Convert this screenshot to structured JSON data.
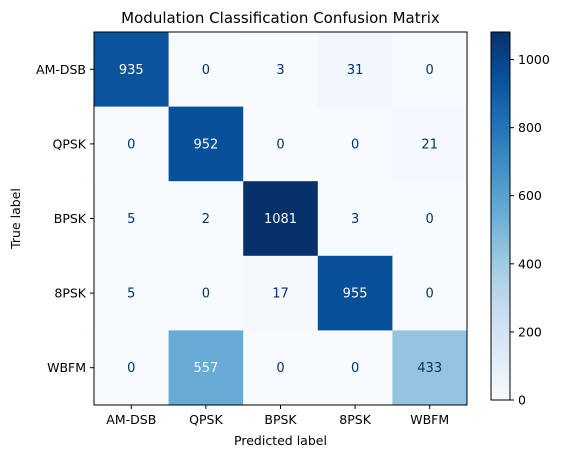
{
  "chart_data": {
    "type": "heatmap",
    "title": "Modulation Classification Confusion Matrix",
    "xlabel": "Predicted label",
    "ylabel": "True label",
    "x_categories": [
      "AM-DSB",
      "QPSK",
      "BPSK",
      "8PSK",
      "WBFM"
    ],
    "y_categories": [
      "AM-DSB",
      "QPSK",
      "BPSK",
      "8PSK",
      "WBFM"
    ],
    "values": [
      [
        935,
        0,
        3,
        31,
        0
      ],
      [
        0,
        952,
        0,
        0,
        21
      ],
      [
        5,
        2,
        1081,
        3,
        0
      ],
      [
        5,
        0,
        17,
        955,
        0
      ],
      [
        0,
        557,
        0,
        0,
        433
      ]
    ],
    "colormap": "Blues",
    "colorbar": {
      "range": [
        0,
        1081
      ],
      "ticks": [
        0,
        200,
        400,
        600,
        800,
        1000
      ]
    },
    "colors": {
      "low": "#f7fbff",
      "high": "#08306b",
      "light_text": "#f7fbff",
      "dark_text": "#08306b"
    },
    "grid": false
  }
}
